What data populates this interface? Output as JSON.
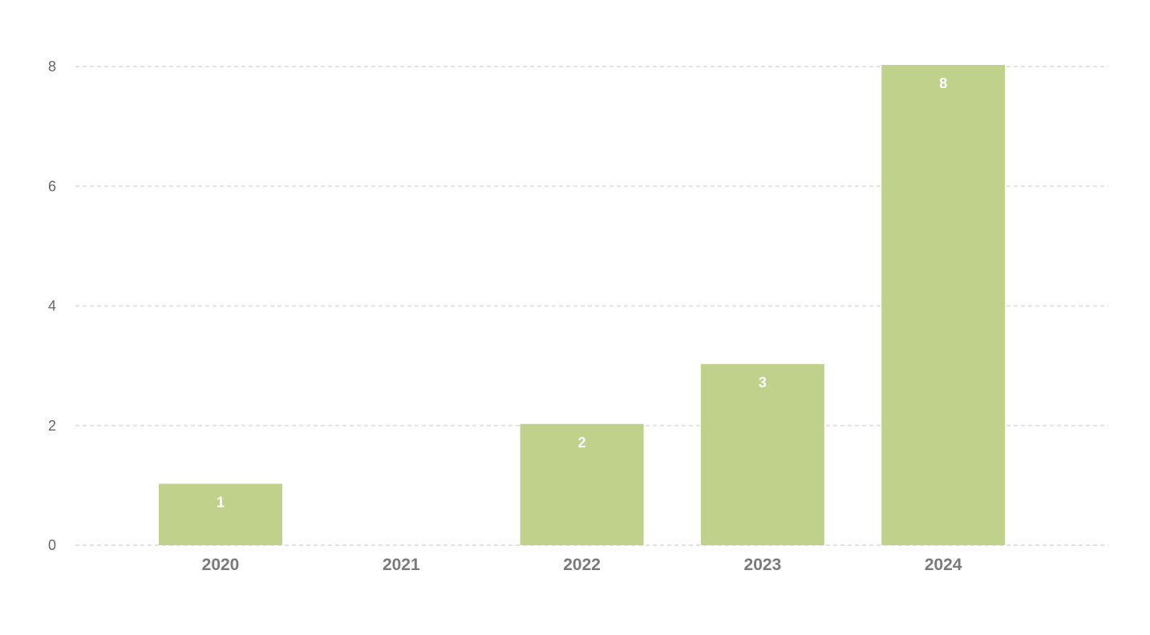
{
  "chart_data": {
    "type": "bar",
    "categories": [
      "2020",
      "2021",
      "2022",
      "2023",
      "2024"
    ],
    "values": [
      1,
      0,
      2,
      3,
      8
    ],
    "data_labels": [
      "1",
      "",
      "2",
      "3",
      "8"
    ],
    "title": "",
    "xlabel": "",
    "ylabel": "",
    "ylim": [
      0,
      8
    ],
    "yticks": [
      0,
      2,
      4,
      6,
      8
    ],
    "ytick_labels": [
      "0",
      "2",
      "4",
      "6",
      "8"
    ],
    "grid": true,
    "legend": "none",
    "colors": {
      "bar": "#c0d18b",
      "grid": "#e3e3e3",
      "tick_text": "#666666",
      "category_text": "#7a7a7a",
      "data_label_text": "#ffffff"
    }
  }
}
